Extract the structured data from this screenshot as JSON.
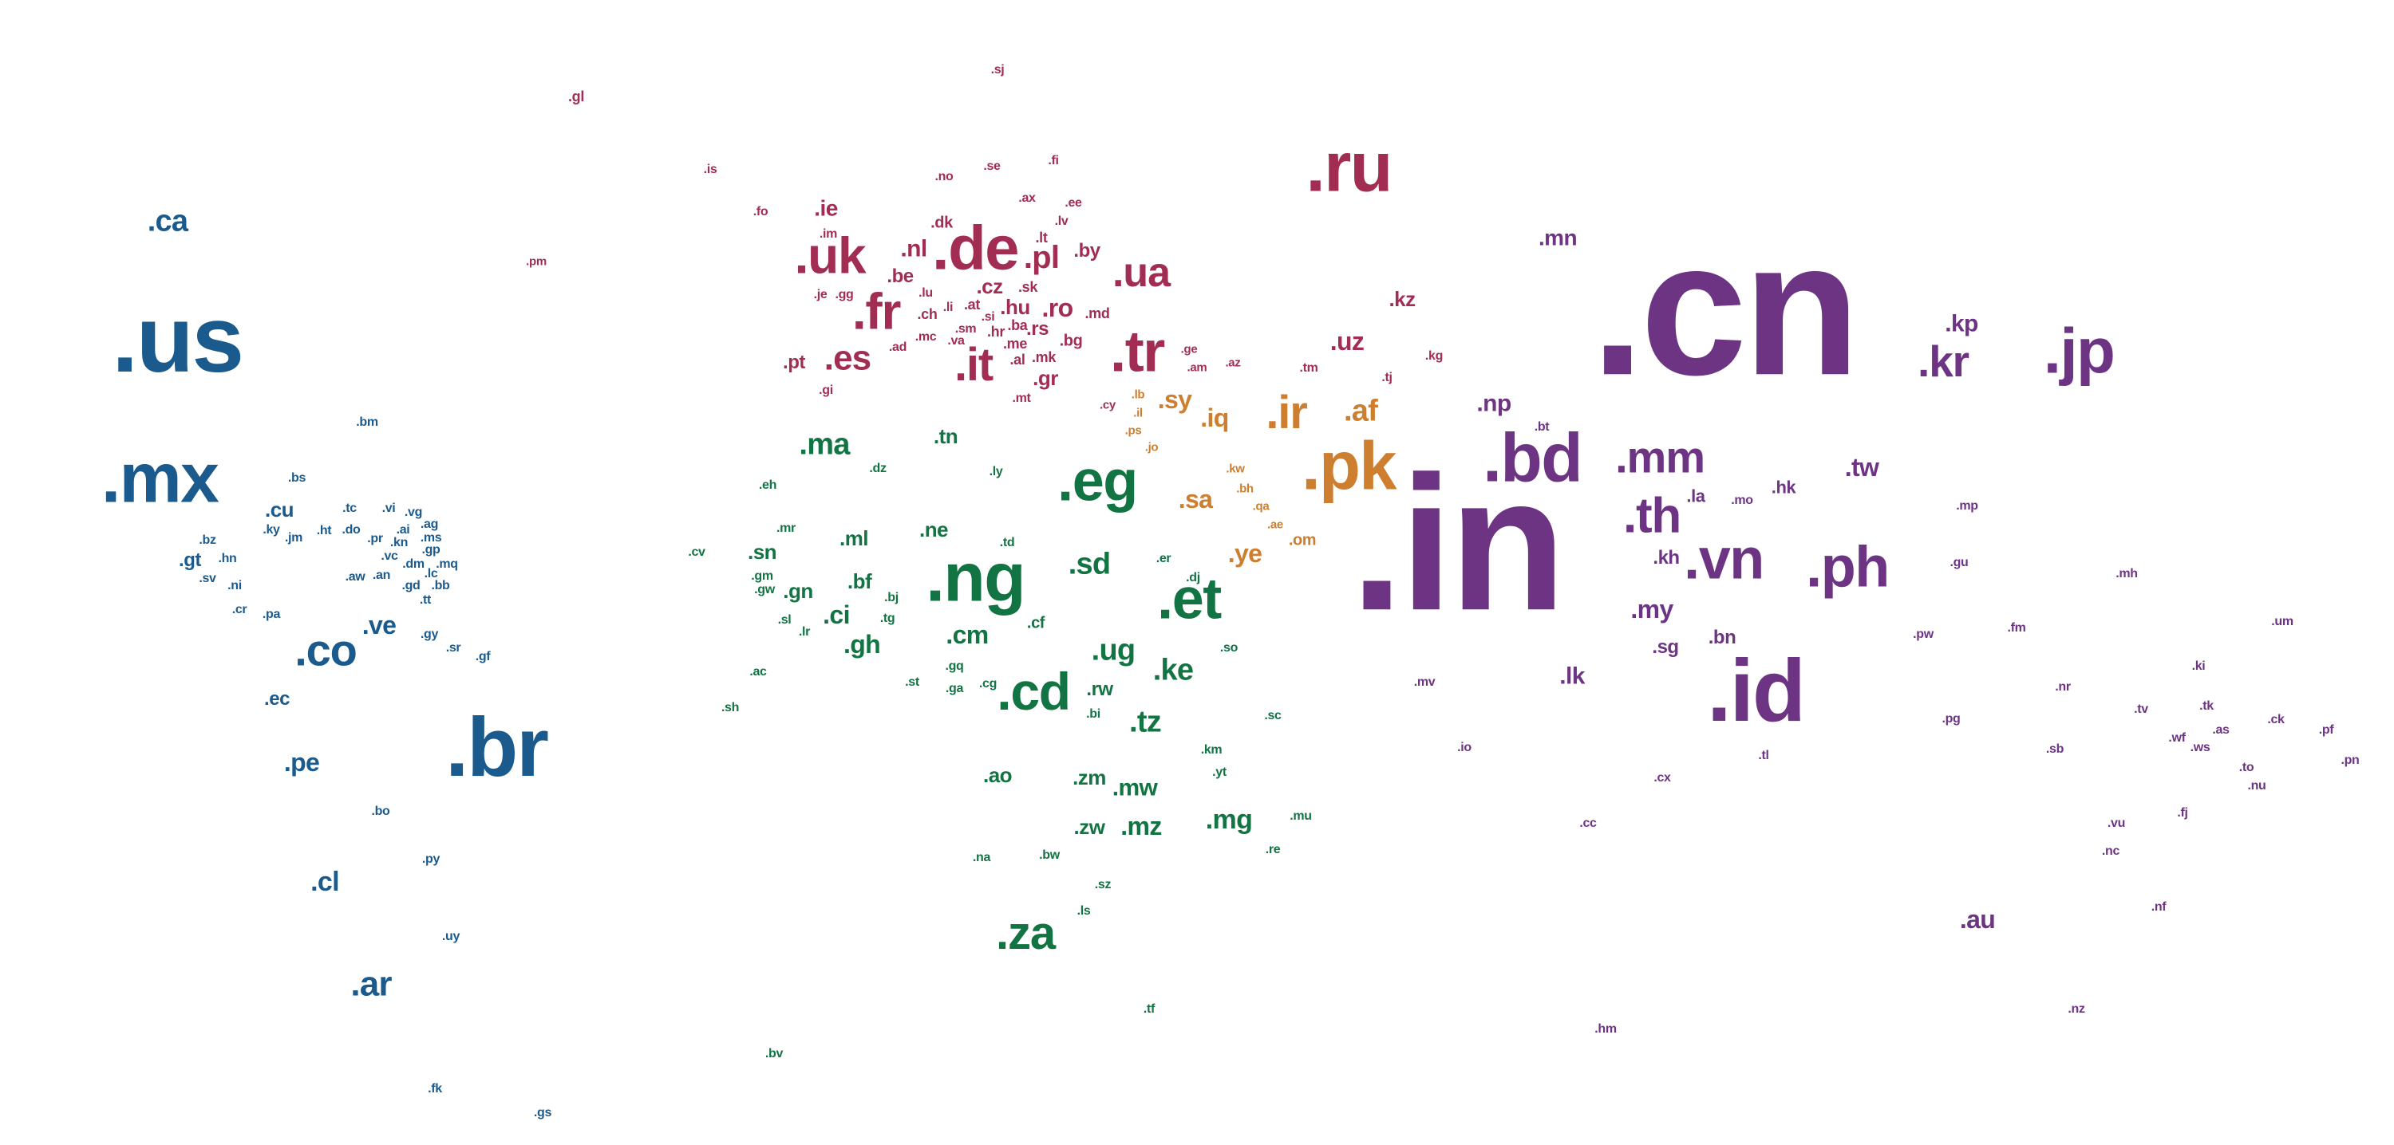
{
  "palette": {
    "americas": "#1b5a8c",
    "europe": "#a22d52",
    "middle_east": "#cd7e2f",
    "africa": "#127343",
    "asia_pacific": "#6e3484"
  },
  "labels": [
    {
      "text": ".cn",
      "group": "asia_pacific",
      "weight": 240
    },
    {
      "text": ".in",
      "group": "asia_pacific",
      "weight": 240
    },
    {
      "text": ".us",
      "group": "americas",
      "weight": 118
    },
    {
      "text": ".br",
      "group": "americas",
      "weight": 105
    },
    {
      "text": ".mx",
      "group": "americas",
      "weight": 88
    },
    {
      "text": ".id",
      "group": "asia_pacific",
      "weight": 110
    },
    {
      "text": ".ru",
      "group": "europe",
      "weight": 88
    },
    {
      "text": ".pk",
      "group": "middle_east",
      "weight": 85
    },
    {
      "text": ".bd",
      "group": "asia_pacific",
      "weight": 86
    },
    {
      "text": ".ng",
      "group": "africa",
      "weight": 86
    },
    {
      "text": ".de",
      "group": "europe",
      "weight": 78
    },
    {
      "text": ".jp",
      "group": "asia_pacific",
      "weight": 80
    },
    {
      "text": ".ph",
      "group": "asia_pacific",
      "weight": 72
    },
    {
      "text": ".vn",
      "group": "asia_pacific",
      "weight": 72
    },
    {
      "text": ".et",
      "group": "africa",
      "weight": 72
    },
    {
      "text": ".eg",
      "group": "africa",
      "weight": 72
    },
    {
      "text": ".tr",
      "group": "europe",
      "weight": 72
    },
    {
      "text": ".cd",
      "group": "africa",
      "weight": 66
    },
    {
      "text": ".uk",
      "group": "europe",
      "weight": 64
    },
    {
      "text": ".fr",
      "group": "europe",
      "weight": 64
    },
    {
      "text": ".th",
      "group": "asia_pacific",
      "weight": 62
    },
    {
      "text": ".mm",
      "group": "asia_pacific",
      "weight": 56
    },
    {
      "text": ".it",
      "group": "europe",
      "weight": 58
    },
    {
      "text": ".kr",
      "group": "asia_pacific",
      "weight": 55
    },
    {
      "text": ".ir",
      "group": "middle_east",
      "weight": 58
    },
    {
      "text": ".za",
      "group": "africa",
      "weight": 58
    },
    {
      "text": ".co",
      "group": "americas",
      "weight": 56
    },
    {
      "text": ".ua",
      "group": "europe",
      "weight": 52
    },
    {
      "text": ".es",
      "group": "europe",
      "weight": 44
    },
    {
      "text": ".ar",
      "group": "americas",
      "weight": 44
    },
    {
      "text": ".ca",
      "group": "americas",
      "weight": 38
    },
    {
      "text": ".ma",
      "group": "africa",
      "weight": 38
    },
    {
      "text": ".sd",
      "group": "africa",
      "weight": 38
    },
    {
      "text": ".tz",
      "group": "africa",
      "weight": 38
    },
    {
      "text": ".ke",
      "group": "africa",
      "weight": 38
    },
    {
      "text": ".ug",
      "group": "africa",
      "weight": 38
    },
    {
      "text": ".pl",
      "group": "europe",
      "weight": 40
    },
    {
      "text": ".af",
      "group": "middle_east",
      "weight": 38
    },
    {
      "text": ".mg",
      "group": "africa",
      "weight": 34
    },
    {
      "text": ".cl",
      "group": "americas",
      "weight": 34
    },
    {
      "text": ".pe",
      "group": "americas",
      "weight": 32
    },
    {
      "text": ".ve",
      "group": "americas",
      "weight": 32
    },
    {
      "text": ".my",
      "group": "asia_pacific",
      "weight": 32
    },
    {
      "text": ".au",
      "group": "asia_pacific",
      "weight": 32
    },
    {
      "text": ".sy",
      "group": "middle_east",
      "weight": 32
    },
    {
      "text": ".sa",
      "group": "middle_east",
      "weight": 32
    },
    {
      "text": ".ye",
      "group": "middle_east",
      "weight": 32
    },
    {
      "text": ".iq",
      "group": "middle_east",
      "weight": 32
    },
    {
      "text": ".uz",
      "group": "europe",
      "weight": 32
    },
    {
      "text": ".ro",
      "group": "europe",
      "weight": 32
    },
    {
      "text": ".gh",
      "group": "africa",
      "weight": 32
    },
    {
      "text": ".cm",
      "group": "africa",
      "weight": 32
    },
    {
      "text": ".ci",
      "group": "africa",
      "weight": 32
    },
    {
      "text": ".mz",
      "group": "africa",
      "weight": 32
    },
    {
      "text": ".mw",
      "group": "africa",
      "weight": 30
    },
    {
      "text": ".tw",
      "group": "asia_pacific",
      "weight": 32
    },
    {
      "text": ".np",
      "group": "asia_pacific",
      "weight": 30
    },
    {
      "text": ".mn",
      "group": "asia_pacific",
      "weight": 28
    },
    {
      "text": ".kp",
      "group": "asia_pacific",
      "weight": 30
    },
    {
      "text": ".lk",
      "group": "asia_pacific",
      "weight": 30
    },
    {
      "text": ".ao",
      "group": "africa",
      "weight": 26
    },
    {
      "text": ".zm",
      "group": "africa",
      "weight": 26
    },
    {
      "text": ".zw",
      "group": "africa",
      "weight": 26
    },
    {
      "text": ".ie",
      "group": "europe",
      "weight": 28
    },
    {
      "text": ".nl",
      "group": "europe",
      "weight": 30
    },
    {
      "text": ".kz",
      "group": "europe",
      "weight": 26
    },
    {
      "text": ".gr",
      "group": "europe",
      "weight": 26
    },
    {
      "text": ".cz",
      "group": "europe",
      "weight": 26
    },
    {
      "text": ".hu",
      "group": "europe",
      "weight": 26
    },
    {
      "text": ".be",
      "group": "europe",
      "weight": 24
    },
    {
      "text": ".by",
      "group": "europe",
      "weight": 24
    },
    {
      "text": ".pt",
      "group": "europe",
      "weight": 24
    },
    {
      "text": ".rs",
      "group": "europe",
      "weight": 24
    },
    {
      "text": ".sn",
      "group": "africa",
      "weight": 26
    },
    {
      "text": ".ml",
      "group": "africa",
      "weight": 26
    },
    {
      "text": ".tn",
      "group": "africa",
      "weight": 26
    },
    {
      "text": ".ne",
      "group": "africa",
      "weight": 26
    },
    {
      "text": ".bf",
      "group": "africa",
      "weight": 26
    },
    {
      "text": ".gn",
      "group": "africa",
      "weight": 26
    },
    {
      "text": ".rw",
      "group": "africa",
      "weight": 24
    },
    {
      "text": ".bn",
      "group": "asia_pacific",
      "weight": 24
    },
    {
      "text": ".sg",
      "group": "asia_pacific",
      "weight": 24
    },
    {
      "text": ".kh",
      "group": "asia_pacific",
      "weight": 24
    },
    {
      "text": ".cu",
      "group": "americas",
      "weight": 26
    },
    {
      "text": ".gt",
      "group": "americas",
      "weight": 24
    },
    {
      "text": ".ec",
      "group": "americas",
      "weight": 24
    },
    {
      "text": ".hk",
      "group": "asia_pacific",
      "weight": 22
    },
    {
      "text": ".la",
      "group": "asia_pacific",
      "weight": 22
    },
    {
      "text": ".dk",
      "group": "europe",
      "weight": 20
    },
    {
      "text": ".lt",
      "group": "europe",
      "weight": 18
    },
    {
      "text": ".bg",
      "group": "europe",
      "weight": 20
    },
    {
      "text": ".md",
      "group": "europe",
      "weight": 18
    },
    {
      "text": ".mk",
      "group": "europe",
      "weight": 18
    },
    {
      "text": ".ba",
      "group": "europe",
      "weight": 18
    },
    {
      "text": ".sk",
      "group": "europe",
      "weight": 18
    },
    {
      "text": ".lv",
      "group": "europe",
      "weight": 16
    },
    {
      "text": ".ee",
      "group": "europe",
      "weight": 16
    },
    {
      "text": ".at",
      "group": "europe",
      "weight": 18
    },
    {
      "text": ".ch",
      "group": "europe",
      "weight": 18
    },
    {
      "text": ".hr",
      "group": "europe",
      "weight": 18
    },
    {
      "text": ".si",
      "group": "europe",
      "weight": 16
    },
    {
      "text": ".al",
      "group": "europe",
      "weight": 18
    },
    {
      "text": ".me",
      "group": "europe",
      "weight": 18
    },
    {
      "text": ".lu",
      "group": "europe",
      "weight": 16
    },
    {
      "text": ".li",
      "group": "europe",
      "weight": 16
    },
    {
      "text": ".sm",
      "group": "europe",
      "weight": 16
    },
    {
      "text": ".va",
      "group": "europe",
      "weight": 16
    },
    {
      "text": ".mc",
      "group": "europe",
      "weight": 16
    },
    {
      "text": ".ad",
      "group": "europe",
      "weight": 16
    },
    {
      "text": ".mt",
      "group": "europe",
      "weight": 16
    },
    {
      "text": ".gi",
      "group": "europe",
      "weight": 16
    },
    {
      "text": ".je",
      "group": "europe",
      "weight": 16
    },
    {
      "text": ".gg",
      "group": "europe",
      "weight": 16
    },
    {
      "text": ".im",
      "group": "europe",
      "weight": 16
    },
    {
      "text": ".no",
      "group": "europe",
      "weight": 16
    },
    {
      "text": ".se",
      "group": "europe",
      "weight": 16
    },
    {
      "text": ".fi",
      "group": "europe",
      "weight": 16
    },
    {
      "text": ".ax",
      "group": "europe",
      "weight": 16
    },
    {
      "text": ".is",
      "group": "europe",
      "weight": 16
    },
    {
      "text": ".fo",
      "group": "europe",
      "weight": 16
    },
    {
      "text": ".sj",
      "group": "europe",
      "weight": 16
    },
    {
      "text": ".gl",
      "group": "europe",
      "weight": 18
    },
    {
      "text": ".pm",
      "group": "europe",
      "weight": 15
    },
    {
      "text": ".ge",
      "group": "europe",
      "weight": 15
    },
    {
      "text": ".am",
      "group": "europe",
      "weight": 15
    },
    {
      "text": ".az",
      "group": "europe",
      "weight": 15
    },
    {
      "text": ".tm",
      "group": "europe",
      "weight": 16
    },
    {
      "text": ".tj",
      "group": "europe",
      "weight": 16
    },
    {
      "text": ".kg",
      "group": "europe",
      "weight": 16
    },
    {
      "text": ".cy",
      "group": "europe",
      "weight": 15
    },
    {
      "text": ".lb",
      "group": "middle_east",
      "weight": 15
    },
    {
      "text": ".il",
      "group": "middle_east",
      "weight": 15
    },
    {
      "text": ".ps",
      "group": "middle_east",
      "weight": 15
    },
    {
      "text": ".jo",
      "group": "middle_east",
      "weight": 15
    },
    {
      "text": ".kw",
      "group": "middle_east",
      "weight": 15
    },
    {
      "text": ".bh",
      "group": "middle_east",
      "weight": 15
    },
    {
      "text": ".qa",
      "group": "middle_east",
      "weight": 15
    },
    {
      "text": ".ae",
      "group": "middle_east",
      "weight": 15
    },
    {
      "text": ".om",
      "group": "middle_east",
      "weight": 20
    },
    {
      "text": ".eh",
      "group": "africa",
      "weight": 16
    },
    {
      "text": ".dz",
      "group": "africa",
      "weight": 16
    },
    {
      "text": ".ly",
      "group": "africa",
      "weight": 16
    },
    {
      "text": ".td",
      "group": "africa",
      "weight": 16
    },
    {
      "text": ".mr",
      "group": "africa",
      "weight": 16
    },
    {
      "text": ".cv",
      "group": "africa",
      "weight": 16
    },
    {
      "text": ".gm",
      "group": "africa",
      "weight": 16
    },
    {
      "text": ".gw",
      "group": "africa",
      "weight": 16
    },
    {
      "text": ".bj",
      "group": "africa",
      "weight": 16
    },
    {
      "text": ".tg",
      "group": "africa",
      "weight": 16
    },
    {
      "text": ".sl",
      "group": "africa",
      "weight": 16
    },
    {
      "text": ".lr",
      "group": "africa",
      "weight": 16
    },
    {
      "text": ".cf",
      "group": "africa",
      "weight": 20
    },
    {
      "text": ".er",
      "group": "africa",
      "weight": 16
    },
    {
      "text": ".dj",
      "group": "africa",
      "weight": 16
    },
    {
      "text": ".so",
      "group": "africa",
      "weight": 16
    },
    {
      "text": ".ac",
      "group": "africa",
      "weight": 16
    },
    {
      "text": ".gq",
      "group": "africa",
      "weight": 16
    },
    {
      "text": ".st",
      "group": "africa",
      "weight": 16
    },
    {
      "text": ".ga",
      "group": "africa",
      "weight": 16
    },
    {
      "text": ".cg",
      "group": "africa",
      "weight": 16
    },
    {
      "text": ".bi",
      "group": "africa",
      "weight": 16
    },
    {
      "text": ".sh",
      "group": "africa",
      "weight": 16
    },
    {
      "text": ".sc",
      "group": "africa",
      "weight": 16
    },
    {
      "text": ".km",
      "group": "africa",
      "weight": 16
    },
    {
      "text": ".yt",
      "group": "africa",
      "weight": 16
    },
    {
      "text": ".mu",
      "group": "africa",
      "weight": 16
    },
    {
      "text": ".re",
      "group": "africa",
      "weight": 16
    },
    {
      "text": ".na",
      "group": "africa",
      "weight": 16
    },
    {
      "text": ".bw",
      "group": "africa",
      "weight": 16
    },
    {
      "text": ".sz",
      "group": "africa",
      "weight": 16
    },
    {
      "text": ".ls",
      "group": "africa",
      "weight": 16
    },
    {
      "text": ".tf",
      "group": "africa",
      "weight": 16
    },
    {
      "text": ".bv",
      "group": "africa",
      "weight": 16
    },
    {
      "text": ".bm",
      "group": "americas",
      "weight": 16
    },
    {
      "text": ".bs",
      "group": "americas",
      "weight": 16
    },
    {
      "text": ".tc",
      "group": "americas",
      "weight": 16
    },
    {
      "text": ".vi",
      "group": "americas",
      "weight": 16
    },
    {
      "text": ".vg",
      "group": "americas",
      "weight": 16
    },
    {
      "text": ".ky",
      "group": "americas",
      "weight": 16
    },
    {
      "text": ".jm",
      "group": "americas",
      "weight": 16
    },
    {
      "text": ".ht",
      "group": "americas",
      "weight": 16
    },
    {
      "text": ".do",
      "group": "americas",
      "weight": 16
    },
    {
      "text": ".ai",
      "group": "americas",
      "weight": 16
    },
    {
      "text": ".ag",
      "group": "americas",
      "weight": 16
    },
    {
      "text": ".pr",
      "group": "americas",
      "weight": 16
    },
    {
      "text": ".kn",
      "group": "americas",
      "weight": 16
    },
    {
      "text": ".ms",
      "group": "americas",
      "weight": 16
    },
    {
      "text": ".gp",
      "group": "americas",
      "weight": 16
    },
    {
      "text": ".vc",
      "group": "americas",
      "weight": 16
    },
    {
      "text": ".dm",
      "group": "americas",
      "weight": 16
    },
    {
      "text": ".mq",
      "group": "americas",
      "weight": 16
    },
    {
      "text": ".lc",
      "group": "americas",
      "weight": 16
    },
    {
      "text": ".aw",
      "group": "americas",
      "weight": 16
    },
    {
      "text": ".an",
      "group": "americas",
      "weight": 16
    },
    {
      "text": ".gd",
      "group": "americas",
      "weight": 16
    },
    {
      "text": ".bb",
      "group": "americas",
      "weight": 16
    },
    {
      "text": ".tt",
      "group": "americas",
      "weight": 16
    },
    {
      "text": ".bz",
      "group": "americas",
      "weight": 16
    },
    {
      "text": ".hn",
      "group": "americas",
      "weight": 16
    },
    {
      "text": ".sv",
      "group": "americas",
      "weight": 16
    },
    {
      "text": ".ni",
      "group": "americas",
      "weight": 16
    },
    {
      "text": ".cr",
      "group": "americas",
      "weight": 16
    },
    {
      "text": ".pa",
      "group": "americas",
      "weight": 16
    },
    {
      "text": ".gy",
      "group": "americas",
      "weight": 16
    },
    {
      "text": ".sr",
      "group": "americas",
      "weight": 16
    },
    {
      "text": ".gf",
      "group": "americas",
      "weight": 16
    },
    {
      "text": ".bo",
      "group": "americas",
      "weight": 16
    },
    {
      "text": ".py",
      "group": "americas",
      "weight": 16
    },
    {
      "text": ".uy",
      "group": "americas",
      "weight": 16
    },
    {
      "text": ".fk",
      "group": "americas",
      "weight": 16
    },
    {
      "text": ".gs",
      "group": "americas",
      "weight": 16
    },
    {
      "text": ".bt",
      "group": "asia_pacific",
      "weight": 16
    },
    {
      "text": ".mo",
      "group": "asia_pacific",
      "weight": 16
    },
    {
      "text": ".mv",
      "group": "asia_pacific",
      "weight": 16
    },
    {
      "text": ".io",
      "group": "asia_pacific",
      "weight": 16
    },
    {
      "text": ".tl",
      "group": "asia_pacific",
      "weight": 16
    },
    {
      "text": ".cx",
      "group": "asia_pacific",
      "weight": 16
    },
    {
      "text": ".cc",
      "group": "asia_pacific",
      "weight": 16
    },
    {
      "text": ".hm",
      "group": "asia_pacific",
      "weight": 16
    },
    {
      "text": ".mp",
      "group": "asia_pacific",
      "weight": 16
    },
    {
      "text": ".gu",
      "group": "asia_pacific",
      "weight": 16
    },
    {
      "text": ".pw",
      "group": "asia_pacific",
      "weight": 16
    },
    {
      "text": ".fm",
      "group": "asia_pacific",
      "weight": 16
    },
    {
      "text": ".mh",
      "group": "asia_pacific",
      "weight": 16
    },
    {
      "text": ".um",
      "group": "asia_pacific",
      "weight": 16
    },
    {
      "text": ".ki",
      "group": "asia_pacific",
      "weight": 16
    },
    {
      "text": ".nr",
      "group": "asia_pacific",
      "weight": 16
    },
    {
      "text": ".tv",
      "group": "asia_pacific",
      "weight": 16
    },
    {
      "text": ".tk",
      "group": "asia_pacific",
      "weight": 16
    },
    {
      "text": ".ck",
      "group": "asia_pacific",
      "weight": 16
    },
    {
      "text": ".pf",
      "group": "asia_pacific",
      "weight": 16
    },
    {
      "text": ".pg",
      "group": "asia_pacific",
      "weight": 16
    },
    {
      "text": ".sb",
      "group": "asia_pacific",
      "weight": 16
    },
    {
      "text": ".wf",
      "group": "asia_pacific",
      "weight": 16
    },
    {
      "text": ".as",
      "group": "asia_pacific",
      "weight": 16
    },
    {
      "text": ".ws",
      "group": "asia_pacific",
      "weight": 16
    },
    {
      "text": ".to",
      "group": "asia_pacific",
      "weight": 16
    },
    {
      "text": ".pn",
      "group": "asia_pacific",
      "weight": 16
    },
    {
      "text": ".nu",
      "group": "asia_pacific",
      "weight": 16
    },
    {
      "text": ".fj",
      "group": "asia_pacific",
      "weight": 16
    },
    {
      "text": ".vu",
      "group": "asia_pacific",
      "weight": 16
    },
    {
      "text": ".nc",
      "group": "asia_pacific",
      "weight": 16
    },
    {
      "text": ".nf",
      "group": "asia_pacific",
      "weight": 16
    },
    {
      "text": ".nz",
      "group": "asia_pacific",
      "weight": 16
    }
  ]
}
